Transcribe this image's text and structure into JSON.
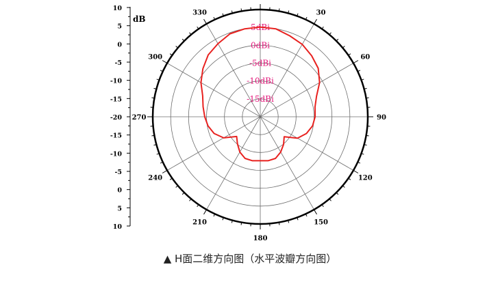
{
  "chart_data": {
    "type": "polar",
    "title": "",
    "ylabel": "dB",
    "y_ticks": [
      "10",
      "5",
      "0",
      "-5",
      "-10",
      "-15",
      "-20",
      "-15",
      "-10",
      "-5",
      "0",
      "5",
      "10"
    ],
    "angle_labels": [
      {
        "deg": 0,
        "label": ""
      },
      {
        "deg": 30,
        "label": "30"
      },
      {
        "deg": 60,
        "label": "60"
      },
      {
        "deg": 90,
        "label": "90"
      },
      {
        "deg": 120,
        "label": "120"
      },
      {
        "deg": 150,
        "label": "150"
      },
      {
        "deg": 180,
        "label": "180"
      },
      {
        "deg": 210,
        "label": "210"
      },
      {
        "deg": 240,
        "label": "240"
      },
      {
        "deg": 270,
        "label": "270"
      },
      {
        "deg": 300,
        "label": "300"
      },
      {
        "deg": 330,
        "label": "330"
      }
    ],
    "ring_labels": [
      "5dBi",
      "0dBi",
      "-5dBi",
      "-10dBi",
      "-15dBi"
    ],
    "r_range": [
      -20,
      10
    ],
    "series": [
      {
        "name": "",
        "color": "#e8211f",
        "angles": [
          0,
          10,
          20,
          30,
          40,
          50,
          60,
          70,
          80,
          90,
          100,
          110,
          120,
          130,
          140,
          150,
          160,
          170,
          180,
          190,
          200,
          210,
          220,
          230,
          240,
          250,
          260,
          270,
          280,
          290,
          300,
          310,
          320,
          330,
          340,
          350
        ],
        "values": [
          5.1,
          5.0,
          4.1,
          3.4,
          2.3,
          1.1,
          -0.9,
          -3.3,
          -4.5,
          -4.7,
          -5.2,
          -6.3,
          -8.0,
          -11.3,
          -9.9,
          -8.6,
          -7.6,
          -7.5,
          -7.7,
          -7.5,
          -7.6,
          -8.6,
          -10.1,
          -11.4,
          -8.2,
          -6.3,
          -5.2,
          -4.5,
          -3.8,
          -2.9,
          -0.9,
          0.9,
          2.6,
          3.6,
          4.7,
          5.0
        ]
      }
    ]
  },
  "caption": {
    "marker": "▲",
    "text": "H面二维方向图（水平波瓣方向图）"
  }
}
